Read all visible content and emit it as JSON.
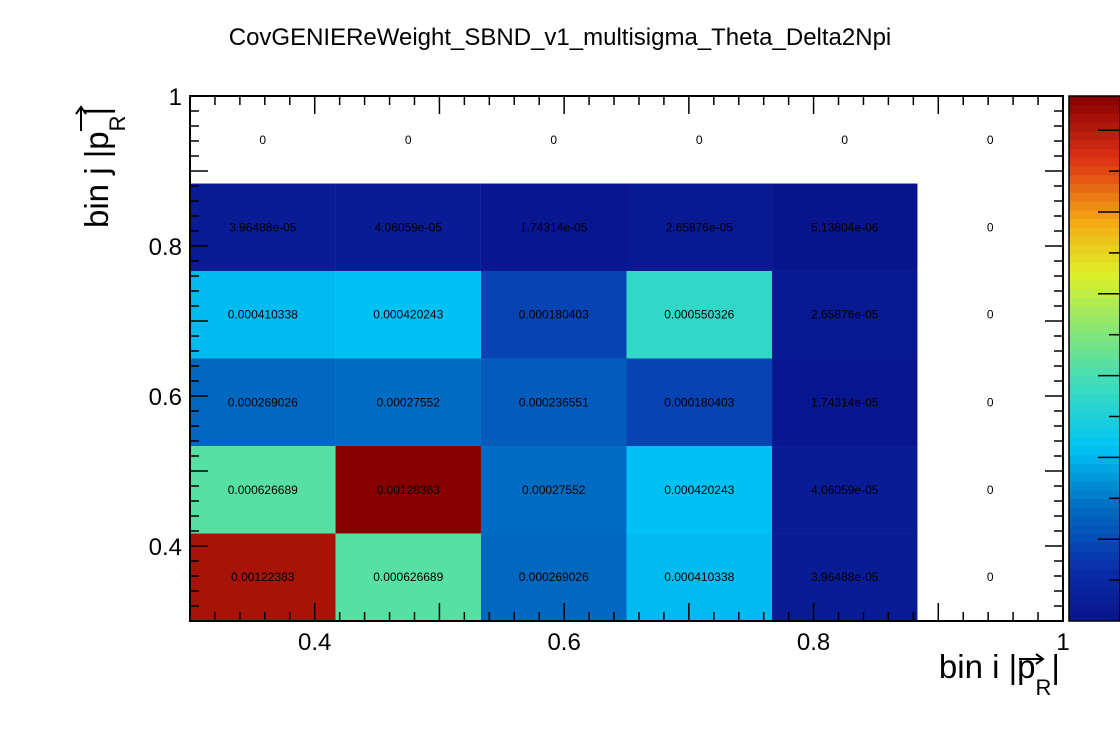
{
  "chart_data": {
    "type": "heatmap",
    "title": "CovGENIEReWeight_SBND_v1_multisigma_Theta_Delta2Npi",
    "xlabel": {
      "prefix": "bin i |",
      "symbol": "p",
      "subscript": "R",
      "suffix": "|"
    },
    "ylabel": {
      "prefix": "bin j |",
      "symbol": "p",
      "subscript": "R",
      "suffix": "|"
    },
    "xlim": [
      0.3,
      1.0
    ],
    "ylim": [
      0.3,
      1.0
    ],
    "x_ticks": [
      "0.4",
      "0.6",
      "0.8",
      "1"
    ],
    "y_ticks": [
      "0.4",
      "0.6",
      "0.8",
      "1"
    ],
    "colormap": "rainbow (blue to red)",
    "zmin": 0,
    "zmax": 0.00128363,
    "x_edges": [
      0.3,
      0.4167,
      0.5333,
      0.65,
      0.7667,
      0.8833,
      1.0
    ],
    "y_edges": [
      0.3,
      0.4167,
      0.5333,
      0.65,
      0.7667,
      0.8833,
      1.0
    ],
    "rows": [
      {
        "labels": [
          "0.00122383",
          "0.000626689",
          "0.000269026",
          "0.000410338",
          "3.96488e-05",
          "0"
        ],
        "values": [
          0.00122383,
          0.000626689,
          0.000269026,
          0.000410338,
          3.96488e-05,
          0
        ]
      },
      {
        "labels": [
          "0.000626689",
          "0.00128363",
          "0.00027552",
          "0.000420243",
          "4.06059e-05",
          "0"
        ],
        "values": [
          0.000626689,
          0.00128363,
          0.00027552,
          0.000420243,
          4.06059e-05,
          0
        ]
      },
      {
        "labels": [
          "0.000269026",
          "0.00027552",
          "0.000236551",
          "0.000180403",
          "1.74314e-05",
          "0"
        ],
        "values": [
          0.000269026,
          0.00027552,
          0.000236551,
          0.000180403,
          1.74314e-05,
          0
        ]
      },
      {
        "labels": [
          "0.000410338",
          "0.000420243",
          "0.000180403",
          "0.000550326",
          "2.65876e-05",
          "0"
        ],
        "values": [
          0.000410338,
          0.000420243,
          0.000180403,
          0.000550326,
          2.65876e-05,
          0
        ]
      },
      {
        "labels": [
          "3.96488e-05",
          "4.06059e-05",
          "1.74314e-05",
          "2.65876e-05",
          "5.13804e-06",
          "0"
        ],
        "values": [
          3.96488e-05,
          4.06059e-05,
          1.74314e-05,
          2.65876e-05,
          5.13804e-06,
          0
        ]
      },
      {
        "labels": [
          "0",
          "0",
          "0",
          "0",
          "0",
          "0"
        ],
        "values": [
          0,
          0,
          0,
          0,
          0,
          0
        ]
      }
    ]
  }
}
